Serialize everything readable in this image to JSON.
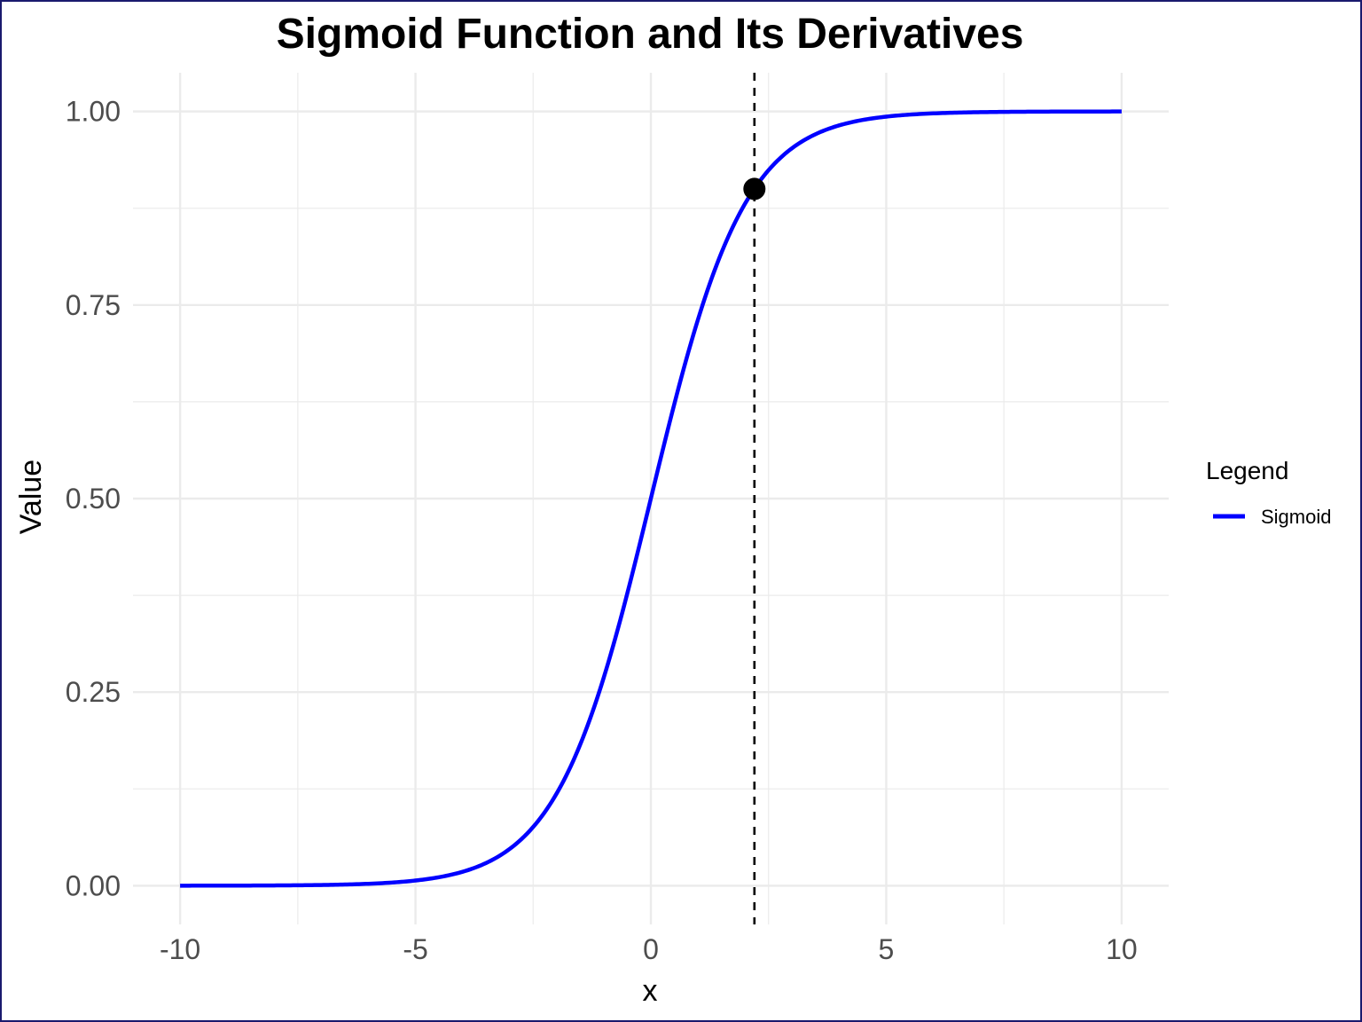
{
  "chart_data": {
    "type": "line",
    "title": "Sigmoid Function and Its Derivatives",
    "xlabel": "x",
    "ylabel": "Value",
    "xlim": [
      -11.0,
      11.0
    ],
    "ylim": [
      -0.05,
      1.05
    ],
    "x_ticks": [
      "-10",
      "-5",
      "0",
      "5",
      "10"
    ],
    "x_tick_values": [
      -10,
      -5,
      0,
      5,
      10
    ],
    "y_ticks": [
      "0.00",
      "0.25",
      "0.50",
      "0.75",
      "1.00"
    ],
    "y_tick_values": [
      0,
      0.25,
      0.5,
      0.75,
      1.0
    ],
    "grid": true,
    "legend": {
      "title": "Legend",
      "position": "right",
      "entries": [
        {
          "label": "Sigmoid",
          "color": "#0000ff"
        }
      ]
    },
    "series": [
      {
        "name": "Sigmoid",
        "color": "#0000ff",
        "function": "1/(1+exp(-x))",
        "x_range": [
          -10,
          10
        ],
        "points": [
          {
            "x": -10,
            "y": 0.0
          },
          {
            "x": -8,
            "y": 0.0003
          },
          {
            "x": -6,
            "y": 0.0025
          },
          {
            "x": -5,
            "y": 0.0067
          },
          {
            "x": -4,
            "y": 0.018
          },
          {
            "x": -3,
            "y": 0.0474
          },
          {
            "x": -2,
            "y": 0.1192
          },
          {
            "x": -1,
            "y": 0.2689
          },
          {
            "x": 0,
            "y": 0.5
          },
          {
            "x": 1,
            "y": 0.7311
          },
          {
            "x": 2,
            "y": 0.8808
          },
          {
            "x": 3,
            "y": 0.9526
          },
          {
            "x": 4,
            "y": 0.982
          },
          {
            "x": 5,
            "y": 0.9933
          },
          {
            "x": 6,
            "y": 0.9975
          },
          {
            "x": 8,
            "y": 0.9997
          },
          {
            "x": 10,
            "y": 1.0
          }
        ]
      }
    ],
    "annotations": {
      "vline": {
        "x": 2.2,
        "style": "dashed",
        "color": "#000000"
      },
      "point": {
        "x": 2.2,
        "y": 0.9,
        "color": "#000000"
      }
    }
  },
  "colors": {
    "background": "#ffffff",
    "border": "#1a1a6e",
    "grid": "#ebebeb",
    "tick_text": "#4d4d4d",
    "line": "#0000ff"
  }
}
